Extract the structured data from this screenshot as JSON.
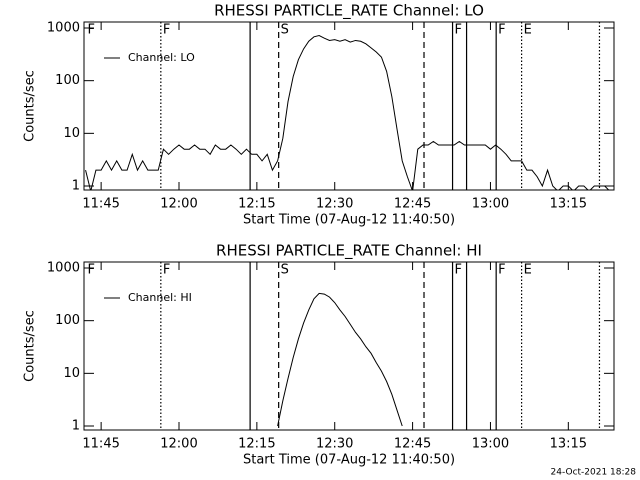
{
  "chart_data": [
    {
      "type": "line",
      "title": "RHESSI PARTICLE_RATE Channel: LO",
      "x_label": "Start Time (07-Aug-12 11:40:50)",
      "y_label": "Counts/sec",
      "log_y": true,
      "legend": "upper left",
      "x": [
        702,
        703,
        704,
        705,
        706,
        707,
        708,
        709,
        710,
        711,
        712,
        713,
        714,
        715,
        716,
        717,
        718,
        719,
        720,
        721,
        722,
        723,
        724,
        725,
        726,
        727,
        728,
        729,
        730,
        731,
        732,
        733,
        734,
        735,
        736,
        737,
        738,
        739,
        740,
        741,
        742,
        743,
        744,
        745,
        746,
        747,
        748,
        749,
        750,
        751,
        752,
        753,
        754,
        755,
        756,
        757,
        758,
        759,
        760,
        761,
        762,
        763,
        764,
        765,
        766,
        767,
        768,
        769,
        770,
        771,
        772,
        773,
        774,
        775,
        776,
        777,
        778,
        779,
        780,
        781,
        782,
        783,
        784,
        785,
        786,
        787,
        788,
        789,
        790,
        791,
        792,
        793,
        794,
        795,
        796,
        797,
        798,
        799,
        800,
        801,
        802,
        803
      ],
      "series": [
        {
          "name": "Channel: LO",
          "color": "#000000",
          "values": [
            2,
            0.8,
            2,
            2,
            3,
            2,
            3,
            2,
            2,
            4,
            2,
            3,
            2,
            2,
            2,
            5,
            4,
            5,
            6,
            5,
            5,
            6,
            5,
            5,
            4,
            6,
            5,
            5,
            6,
            5,
            4,
            5,
            4,
            4,
            3,
            4,
            2,
            3,
            8,
            40,
            120,
            250,
            400,
            560,
            680,
            720,
            640,
            580,
            600,
            560,
            600,
            540,
            580,
            560,
            500,
            420,
            350,
            280,
            150,
            50,
            12,
            3,
            1.5,
            0.8,
            5,
            6,
            6,
            7,
            6,
            6,
            6,
            6,
            7,
            6,
            6,
            6,
            6,
            6,
            5,
            6,
            5,
            4,
            3,
            3,
            3,
            2,
            2,
            1.5,
            1,
            2,
            1,
            0.8,
            1,
            1,
            0.8,
            1,
            1,
            0.8,
            1,
            1,
            1,
            0.8
          ]
        }
      ],
      "xlim": [
        701.7,
        803.8
      ],
      "xticks": [
        {
          "value": 705,
          "label": "11:45"
        },
        {
          "value": 720,
          "label": "12:00"
        },
        {
          "value": 735,
          "label": "12:15"
        },
        {
          "value": 750,
          "label": "12:30"
        },
        {
          "value": 765,
          "label": "12:45"
        },
        {
          "value": 780,
          "label": "13:00"
        },
        {
          "value": 795,
          "label": "13:15"
        }
      ],
      "ylim": [
        0.84,
        1300
      ],
      "yticks": [
        1,
        10,
        100,
        1000
      ],
      "markers": [
        {
          "x": 702,
          "style": "none",
          "label": "F"
        },
        {
          "x": 716.5,
          "style": "dotted",
          "label": "F"
        },
        {
          "x": 733.7,
          "style": "solid"
        },
        {
          "x": 739.2,
          "style": "dashed",
          "label": "S"
        },
        {
          "x": 767.2,
          "style": "dashed"
        },
        {
          "x": 772.7,
          "style": "solid",
          "label": "F"
        },
        {
          "x": 775.4,
          "style": "solid"
        },
        {
          "x": 781.1,
          "style": "solid",
          "label": "F"
        },
        {
          "x": 786,
          "style": "dotted",
          "label": "E"
        },
        {
          "x": 801,
          "style": "dotted"
        }
      ]
    },
    {
      "type": "line",
      "title": "RHESSI PARTICLE_RATE Channel: HI",
      "x_label": "Start Time (07-Aug-12 11:40:50)",
      "y_label": "Counts/sec",
      "log_y": true,
      "legend": "upper left",
      "x": [
        702,
        703,
        704,
        705,
        706,
        707,
        708,
        709,
        710,
        711,
        712,
        713,
        714,
        715,
        716,
        717,
        718,
        719,
        720,
        721,
        722,
        723,
        724,
        725,
        726,
        727,
        728,
        729,
        730,
        731,
        732,
        733,
        734,
        735,
        736,
        737,
        738,
        739,
        740,
        741,
        742,
        743,
        744,
        745,
        746,
        747,
        748,
        749,
        750,
        751,
        752,
        753,
        754,
        755,
        756,
        757,
        758,
        759,
        760,
        761,
        762,
        763,
        764,
        765,
        766,
        767,
        768,
        769,
        770,
        771,
        772,
        773,
        774,
        775,
        776,
        777,
        778,
        779,
        780,
        781,
        782,
        783,
        784,
        785,
        786,
        787,
        788,
        789,
        790,
        791,
        792,
        793,
        794,
        795,
        796,
        797,
        798,
        799,
        800,
        801,
        802,
        803
      ],
      "series": [
        {
          "name": "Channel: HI",
          "color": "#000000",
          "values": [
            null,
            null,
            null,
            null,
            null,
            null,
            null,
            null,
            null,
            null,
            null,
            null,
            null,
            null,
            null,
            null,
            null,
            null,
            null,
            null,
            null,
            null,
            null,
            null,
            null,
            null,
            null,
            null,
            null,
            null,
            null,
            null,
            null,
            null,
            null,
            null,
            null,
            1,
            3,
            8,
            20,
            45,
            90,
            160,
            260,
            330,
            320,
            280,
            220,
            160,
            120,
            85,
            60,
            45,
            32,
            24,
            16,
            11,
            7,
            4,
            2,
            1,
            null,
            null,
            null,
            null,
            null,
            null,
            null,
            null,
            null,
            null,
            null,
            null,
            null,
            null,
            null,
            null,
            null,
            null,
            null,
            null,
            null,
            null,
            null,
            null,
            null,
            null,
            null,
            null,
            null,
            null,
            null,
            null,
            null,
            null,
            null,
            null,
            null,
            null,
            null,
            null
          ]
        }
      ],
      "xlim": [
        701.7,
        803.8
      ],
      "xticks": [
        {
          "value": 705,
          "label": "11:45"
        },
        {
          "value": 720,
          "label": "12:00"
        },
        {
          "value": 735,
          "label": "12:15"
        },
        {
          "value": 750,
          "label": "12:30"
        },
        {
          "value": 765,
          "label": "12:45"
        },
        {
          "value": 780,
          "label": "13:00"
        },
        {
          "value": 795,
          "label": "13:15"
        }
      ],
      "ylim": [
        0.84,
        1300
      ],
      "yticks": [
        1,
        10,
        100,
        1000
      ],
      "markers": [
        {
          "x": 702,
          "style": "none",
          "label": "F"
        },
        {
          "x": 716.5,
          "style": "dotted",
          "label": "F"
        },
        {
          "x": 733.7,
          "style": "solid"
        },
        {
          "x": 739.2,
          "style": "dashed",
          "label": "S"
        },
        {
          "x": 767.2,
          "style": "dashed"
        },
        {
          "x": 772.7,
          "style": "solid",
          "label": "F"
        },
        {
          "x": 775.4,
          "style": "solid"
        },
        {
          "x": 781.1,
          "style": "solid",
          "label": "F"
        },
        {
          "x": 786,
          "style": "dotted",
          "label": "E"
        },
        {
          "x": 801,
          "style": "dotted"
        }
      ]
    }
  ],
  "footer": "24-Oct-2021 18:28"
}
